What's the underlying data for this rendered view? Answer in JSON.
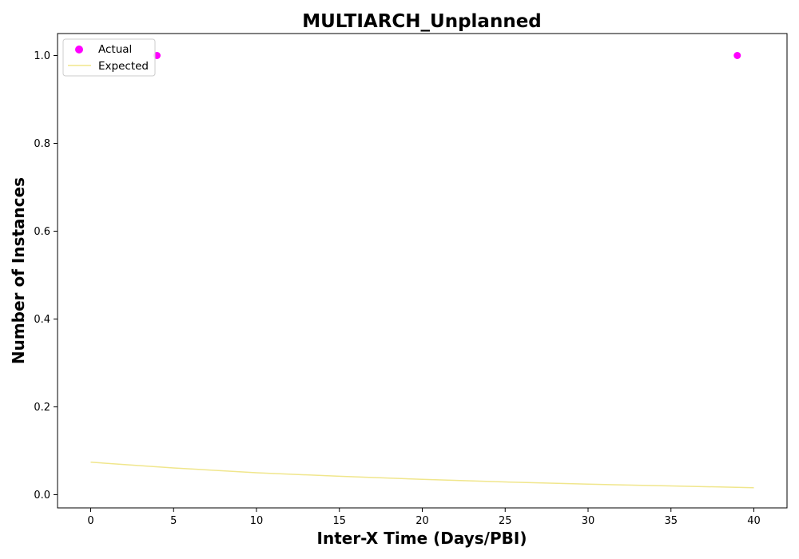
{
  "chart_data": {
    "type": "scatter",
    "title": "MULTIARCH_Unplanned",
    "xlabel": "Inter-X Time (Days/PBI)",
    "ylabel": "Number of Instances",
    "xlim": [
      -2,
      42
    ],
    "ylim": [
      -0.03,
      1.05
    ],
    "xticks": [
      0,
      5,
      10,
      15,
      20,
      25,
      30,
      35,
      40
    ],
    "yticks": [
      0.0,
      0.2,
      0.4,
      0.6,
      0.8,
      1.0
    ],
    "xtick_labels": [
      "0",
      "5",
      "10",
      "15",
      "20",
      "25",
      "30",
      "35",
      "40"
    ],
    "ytick_labels": [
      "0.0",
      "0.2",
      "0.4",
      "0.6",
      "0.8",
      "1.0"
    ],
    "grid": false,
    "legend_position": "upper-left",
    "series": [
      {
        "name": "Actual",
        "kind": "scatter",
        "color": "#ff00ff",
        "x": [
          4,
          39
        ],
        "y": [
          1.0,
          1.0
        ]
      },
      {
        "name": "Expected",
        "kind": "line",
        "color": "#f0e68c",
        "x": [
          0,
          5,
          10,
          15,
          20,
          25,
          30,
          35,
          40
        ],
        "y": [
          0.074,
          0.061,
          0.05,
          0.042,
          0.035,
          0.029,
          0.024,
          0.02,
          0.016
        ]
      }
    ]
  }
}
